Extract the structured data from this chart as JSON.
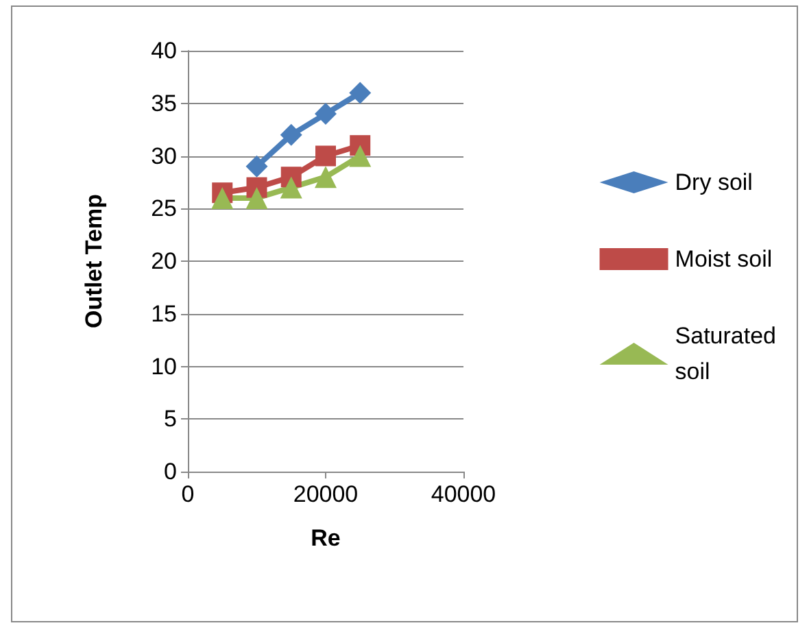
{
  "chart_data": {
    "type": "line",
    "xlabel": "Re",
    "ylabel": "Outlet Temp",
    "x": [
      5000,
      10000,
      15000,
      20000,
      25000
    ],
    "series": [
      {
        "name": "Dry soil",
        "color": "#4a7ebb",
        "values": [
          null,
          29,
          32,
          34,
          36
        ],
        "marker": "diamond"
      },
      {
        "name": "Moist soil",
        "color": "#be4b48",
        "values": [
          26.5,
          27,
          28,
          30,
          31
        ],
        "marker": "square"
      },
      {
        "name": "Saturated soil",
        "color": "#98b954",
        "values": [
          26,
          26,
          27,
          28,
          30
        ],
        "marker": "triangle"
      }
    ],
    "xlim": [
      0,
      40000
    ],
    "xticks": [
      0,
      20000,
      40000
    ],
    "ylim": [
      0,
      40
    ],
    "yticks": [
      0,
      5,
      10,
      15,
      20,
      25,
      30,
      35,
      40
    ],
    "grid": "y",
    "legend": "right"
  }
}
